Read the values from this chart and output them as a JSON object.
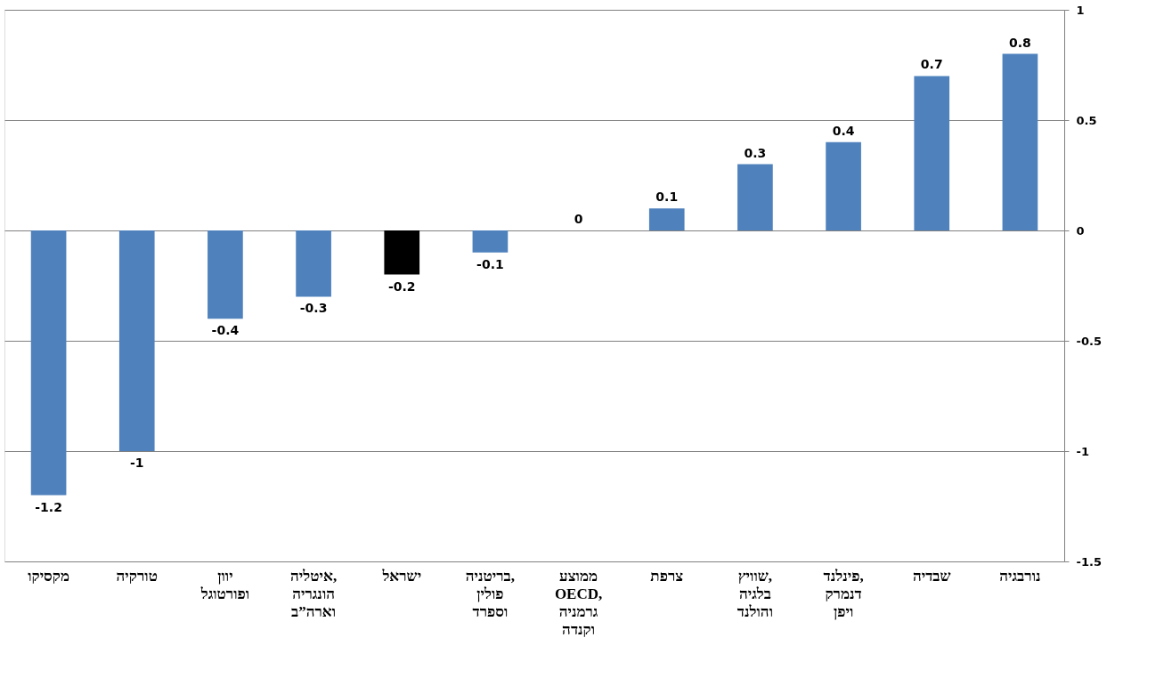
{
  "chart_data": {
    "type": "bar",
    "categories": [
      "מקסיקו",
      "טורקיה",
      "יוון\nופורטוגל",
      "איטליה,\nהונגריה\nוארה”ב",
      "ישראל",
      "בריטניה,\nפולין\nוספרד",
      "ממוצע\nOECD,\nגרמניה\nוקנדה",
      "צרפת",
      "שוויץ,\nבלגיה\nוהולנד",
      "פינלנד,\nדנמרק\nויפן",
      "שבדיה",
      "נורבגיה"
    ],
    "values": [
      -1.2,
      -1,
      -0.4,
      -0.3,
      -0.2,
      -0.1,
      0,
      0.1,
      0.3,
      0.4,
      0.7,
      0.8
    ],
    "colors": [
      "#4f81bd",
      "#4f81bd",
      "#4f81bd",
      "#4f81bd",
      "#000000",
      "#4f81bd",
      "#4f81bd",
      "#4f81bd",
      "#4f81bd",
      "#4f81bd",
      "#4f81bd",
      "#4f81bd"
    ],
    "ylim": [
      -1.5,
      1
    ],
    "yticks": [
      -1.5,
      -1,
      -0.5,
      0,
      0.5,
      1
    ],
    "grid": "y",
    "data_labels": true
  }
}
